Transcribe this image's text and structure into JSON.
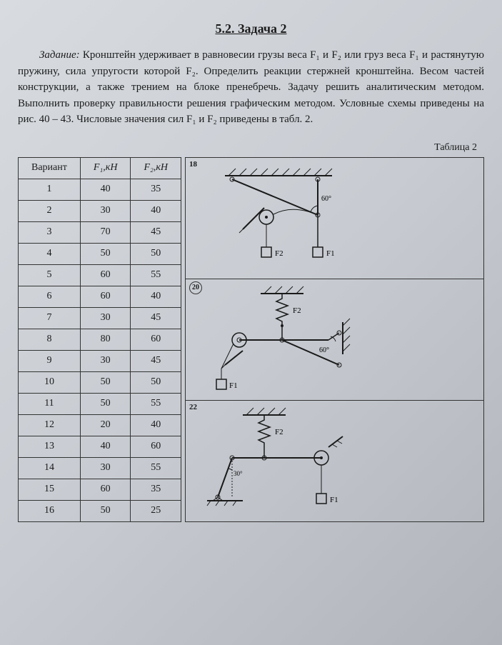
{
  "section_title": "5.2. Задача 2",
  "task_label": "Задание:",
  "task_body": "Кронштейн удерживает в равновесии грузы веса F₁ и F₂ или груз веса F₁ и растянутую пружину, сила упругости которой F₂. Определить реакции стержней кронштейна. Весом частей конструкции, а также трением на блоке пренебречь. Задачу решить аналитическим методом. Выполнить проверку правильности решения графическим методом. Условные схемы приведены на рис. 40 – 43. Числовые значения сил F₁ и F₂ приведены в табл. 2.",
  "table_caption": "Таблица 2",
  "table": {
    "headers": [
      "Вариант",
      "F₁,кН",
      "F₂,кН"
    ],
    "rows": [
      [
        "1",
        "40",
        "35"
      ],
      [
        "2",
        "30",
        "40"
      ],
      [
        "3",
        "70",
        "45"
      ],
      [
        "4",
        "50",
        "50"
      ],
      [
        "5",
        "60",
        "55"
      ],
      [
        "6",
        "60",
        "40"
      ],
      [
        "7",
        "30",
        "45"
      ],
      [
        "8",
        "80",
        "60"
      ],
      [
        "9",
        "30",
        "45"
      ],
      [
        "10",
        "50",
        "50"
      ],
      [
        "11",
        "50",
        "55"
      ],
      [
        "12",
        "20",
        "40"
      ],
      [
        "13",
        "40",
        "60"
      ],
      [
        "14",
        "30",
        "55"
      ],
      [
        "15",
        "60",
        "35"
      ],
      [
        "16",
        "50",
        "25"
      ]
    ]
  },
  "diagrams": [
    {
      "num": "18",
      "circled": false,
      "angle": "60°",
      "labels": [
        "F2",
        "F1"
      ]
    },
    {
      "num": "20",
      "circled": true,
      "angle": "60°",
      "labels": [
        "F1",
        "F2"
      ]
    },
    {
      "num": "22",
      "circled": false,
      "angle": "30°",
      "labels": [
        "F1",
        "F2"
      ]
    }
  ],
  "colors": {
    "stroke": "#1a1a1a",
    "hatch": "#1a1a1a"
  }
}
